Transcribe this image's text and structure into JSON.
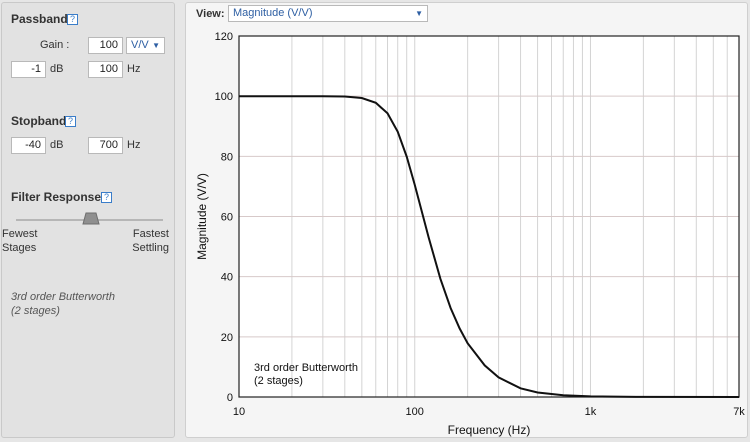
{
  "passband": {
    "title": "Passband",
    "help": "?",
    "gain_label": "Gain :",
    "gain_value": "100",
    "gain_unit": "V/V",
    "ripple_value": "-1",
    "ripple_unit": "dB",
    "freq_value": "100",
    "freq_unit": "Hz"
  },
  "stopband": {
    "title": "Stopband",
    "help": "?",
    "atten_value": "-40",
    "atten_unit": "dB",
    "freq_value": "700",
    "freq_unit": "Hz"
  },
  "filter_response": {
    "title": "Filter Response",
    "help": "?",
    "left_label_1": "Fewest",
    "left_label_2": "Stages",
    "right_label_1": "Fastest",
    "right_label_2": "Settling",
    "slider_value": 0.5
  },
  "summary": {
    "line1": "3rd order Butterworth",
    "line2": "(2 stages)"
  },
  "view": {
    "label": "View:",
    "selected": "Magnitude (V/V)"
  },
  "colors": {
    "link_blue": "#2e5fa3",
    "curve": "#111111"
  },
  "chart_data": {
    "type": "line",
    "xscale": "log",
    "xlabel": "Frequency (Hz)",
    "ylabel": "Magnitude (V/V)",
    "xlim": [
      10,
      7000
    ],
    "ylim": [
      0,
      120
    ],
    "x_ticks": [
      {
        "value": 10,
        "label": "10"
      },
      {
        "value": 100,
        "label": "100"
      },
      {
        "value": 1000,
        "label": "1k"
      },
      {
        "value": 7000,
        "label": "7k"
      }
    ],
    "y_ticks": [
      0,
      20,
      40,
      60,
      80,
      100,
      120
    ],
    "grid": true,
    "annotation": [
      "3rd order Butterworth",
      "(2 stages)"
    ],
    "series": [
      {
        "x": [
          10,
          20,
          30,
          40,
          50,
          60,
          70,
          80,
          90,
          100,
          120,
          140,
          160,
          180,
          200,
          250,
          300,
          400,
          500,
          700,
          1000,
          2000,
          7000
        ],
        "y": [
          100,
          100,
          99.99,
          99.9,
          99.4,
          97.8,
          94.3,
          88.2,
          79.9,
          70.6,
          53.0,
          39.3,
          29.6,
          22.8,
          17.9,
          10.5,
          6.5,
          2.9,
          1.5,
          0.6,
          0.2,
          0.03,
          0
        ]
      }
    ]
  }
}
